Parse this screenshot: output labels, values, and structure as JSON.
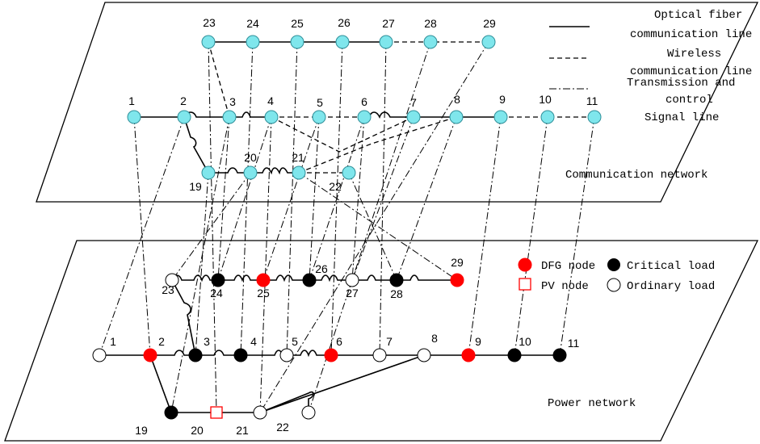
{
  "colors": {
    "comm_node": "#7fe6ec",
    "dfg_node": "#ff0000",
    "critical_load": "#000000",
    "ordinary_load": "#ffffff",
    "pv_node": "#ff0000",
    "fiber_label": "#ff2a2a",
    "wireless_label": "#33c9dc",
    "control_label": "#33b36a"
  },
  "legend_top": {
    "fiber": "Optical fiber communication line",
    "fiber_line1": "Optical fiber",
    "fiber_line2": "communication line",
    "wireless_line1": "Wireless",
    "wireless_line2": "communication line",
    "control_line1": "Transmission and",
    "control_line2": "control",
    "control_line3": "Signal line"
  },
  "legend_bottom": {
    "dfg": "DFG node",
    "critical": "Critical load",
    "pv": "PV node",
    "ordinary": "Ordinary load"
  },
  "planes": {
    "communication": "Communication network",
    "power": "Power network"
  },
  "comm_nodes": [
    {
      "id": "1"
    },
    {
      "id": "2"
    },
    {
      "id": "3"
    },
    {
      "id": "4"
    },
    {
      "id": "5"
    },
    {
      "id": "6"
    },
    {
      "id": "7"
    },
    {
      "id": "8"
    },
    {
      "id": "9"
    },
    {
      "id": "10"
    },
    {
      "id": "11"
    },
    {
      "id": "19"
    },
    {
      "id": "20"
    },
    {
      "id": "21"
    },
    {
      "id": "22"
    },
    {
      "id": "23"
    },
    {
      "id": "24"
    },
    {
      "id": "25"
    },
    {
      "id": "26"
    },
    {
      "id": "27"
    },
    {
      "id": "28"
    },
    {
      "id": "29"
    }
  ],
  "power_nodes": [
    {
      "id": "1",
      "type": "ordinary"
    },
    {
      "id": "2",
      "type": "dfg"
    },
    {
      "id": "3",
      "type": "critical"
    },
    {
      "id": "4",
      "type": "critical"
    },
    {
      "id": "5",
      "type": "ordinary"
    },
    {
      "id": "6",
      "type": "dfg"
    },
    {
      "id": "7",
      "type": "ordinary"
    },
    {
      "id": "8",
      "type": "ordinary"
    },
    {
      "id": "9",
      "type": "dfg"
    },
    {
      "id": "10",
      "type": "critical"
    },
    {
      "id": "11",
      "type": "critical"
    },
    {
      "id": "19",
      "type": "critical"
    },
    {
      "id": "20",
      "type": "pv"
    },
    {
      "id": "21",
      "type": "ordinary"
    },
    {
      "id": "22",
      "type": "ordinary"
    },
    {
      "id": "23",
      "type": "ordinary"
    },
    {
      "id": "24",
      "type": "critical"
    },
    {
      "id": "25",
      "type": "dfg"
    },
    {
      "id": "26",
      "type": "critical"
    },
    {
      "id": "27",
      "type": "ordinary"
    },
    {
      "id": "28",
      "type": "critical"
    },
    {
      "id": "29",
      "type": "dfg"
    }
  ]
}
